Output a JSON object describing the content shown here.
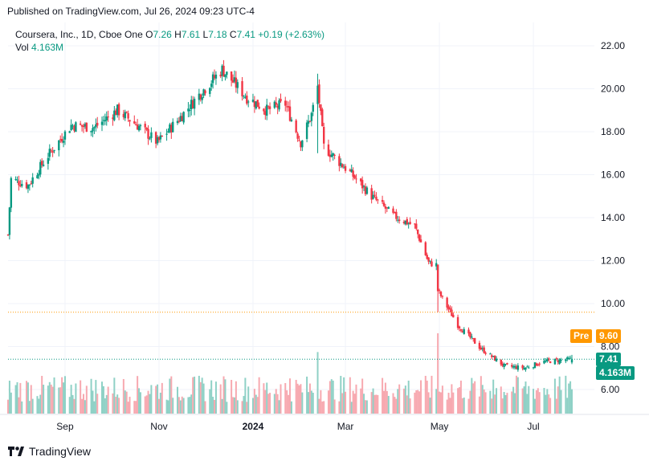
{
  "header": {
    "published": "Published on TradingView.com, Jul 26, 2024 09:23 UTC-4"
  },
  "legend": {
    "symbol": "Coursera, Inc., 1D, Cboe One",
    "o_label": "O",
    "o_value": "7.26",
    "h_label": "H",
    "h_value": "7.61",
    "l_label": "L",
    "l_value": "7.18",
    "c_label": "C",
    "c_value": "7.41",
    "change": "+0.19 (+2.63%)",
    "vol_label": "Vol",
    "vol_value": "4.163M"
  },
  "badges": {
    "pre_label": "Pre",
    "pre_value": "9.60",
    "last_value": "7.41",
    "volume_value": "4.163M"
  },
  "footer": {
    "brand": "TradingView"
  },
  "colors": {
    "up": "#089981",
    "down": "#f23645",
    "up_volume": "#8fd1c6",
    "down_volume": "#f7a9b0",
    "pre_line": "#ff9800",
    "grid": "#f0f3fa"
  },
  "chart_data": {
    "type": "candlestick",
    "title": "Coursera, Inc., 1D, Cboe One",
    "y_ticks": [
      "6.00",
      "8.00",
      "10.00",
      "12.00",
      "14.00",
      "16.00",
      "18.00",
      "20.00",
      "22.00"
    ],
    "ylim": [
      5.0,
      22.5
    ],
    "x_ticks": [
      "Sep",
      "Nov",
      "2024",
      "Mar",
      "May",
      "Jul"
    ],
    "x_tick_dates": [
      "2023-09-01",
      "2023-11-01",
      "2024-01-01",
      "2024-03-01",
      "2024-05-01",
      "2024-07-01"
    ],
    "x_range": [
      "2023-07-26",
      "2024-07-26"
    ],
    "pre_market_price": 9.6,
    "last_price": 7.41,
    "last_volume_millions": 4.163,
    "grid": true,
    "close_keypoints": [
      {
        "date": "2023-07-26",
        "close": 13.2
      },
      {
        "date": "2023-07-28",
        "close": 15.8
      },
      {
        "date": "2023-08-08",
        "close": 15.5
      },
      {
        "date": "2023-08-20",
        "close": 16.8
      },
      {
        "date": "2023-09-05",
        "close": 18.3
      },
      {
        "date": "2023-09-20",
        "close": 18.2
      },
      {
        "date": "2023-10-05",
        "close": 19.0
      },
      {
        "date": "2023-10-18",
        "close": 18.3
      },
      {
        "date": "2023-10-31",
        "close": 17.5
      },
      {
        "date": "2023-11-14",
        "close": 18.6
      },
      {
        "date": "2023-11-28",
        "close": 19.8
      },
      {
        "date": "2023-12-12",
        "close": 20.9
      },
      {
        "date": "2023-12-28",
        "close": 19.6
      },
      {
        "date": "2024-01-10",
        "close": 19.0
      },
      {
        "date": "2024-01-22",
        "close": 19.3
      },
      {
        "date": "2024-02-01",
        "close": 17.5
      },
      {
        "date": "2024-02-08",
        "close": 18.8
      },
      {
        "date": "2024-02-12",
        "close": 20.1
      },
      {
        "date": "2024-02-16",
        "close": 17.3
      },
      {
        "date": "2024-03-04",
        "close": 16.1
      },
      {
        "date": "2024-03-18",
        "close": 15.0
      },
      {
        "date": "2024-04-01",
        "close": 14.1
      },
      {
        "date": "2024-04-15",
        "close": 13.6
      },
      {
        "date": "2024-04-24",
        "close": 11.9
      },
      {
        "date": "2024-04-29",
        "close": 11.8
      },
      {
        "date": "2024-04-30",
        "close": 10.6
      },
      {
        "date": "2024-05-13",
        "close": 9.0
      },
      {
        "date": "2024-05-28",
        "close": 7.9
      },
      {
        "date": "2024-06-12",
        "close": 7.1
      },
      {
        "date": "2024-06-25",
        "close": 7.0
      },
      {
        "date": "2024-07-08",
        "close": 7.3
      },
      {
        "date": "2024-07-26",
        "close": 7.41
      }
    ],
    "spikes": [
      {
        "date": "2024-02-12",
        "high": 20.7,
        "low": 17.0
      },
      {
        "date": "2024-04-30",
        "high": 10.8,
        "low": 9.6
      }
    ],
    "volume_spikes_millions": [
      {
        "date": "2024-02-12",
        "volume": 10.5
      },
      {
        "date": "2024-04-30",
        "volume": 14.0
      },
      {
        "date": "2024-01-25",
        "volume": 6.0
      },
      {
        "date": "2024-06-05",
        "volume": 5.8
      }
    ]
  }
}
